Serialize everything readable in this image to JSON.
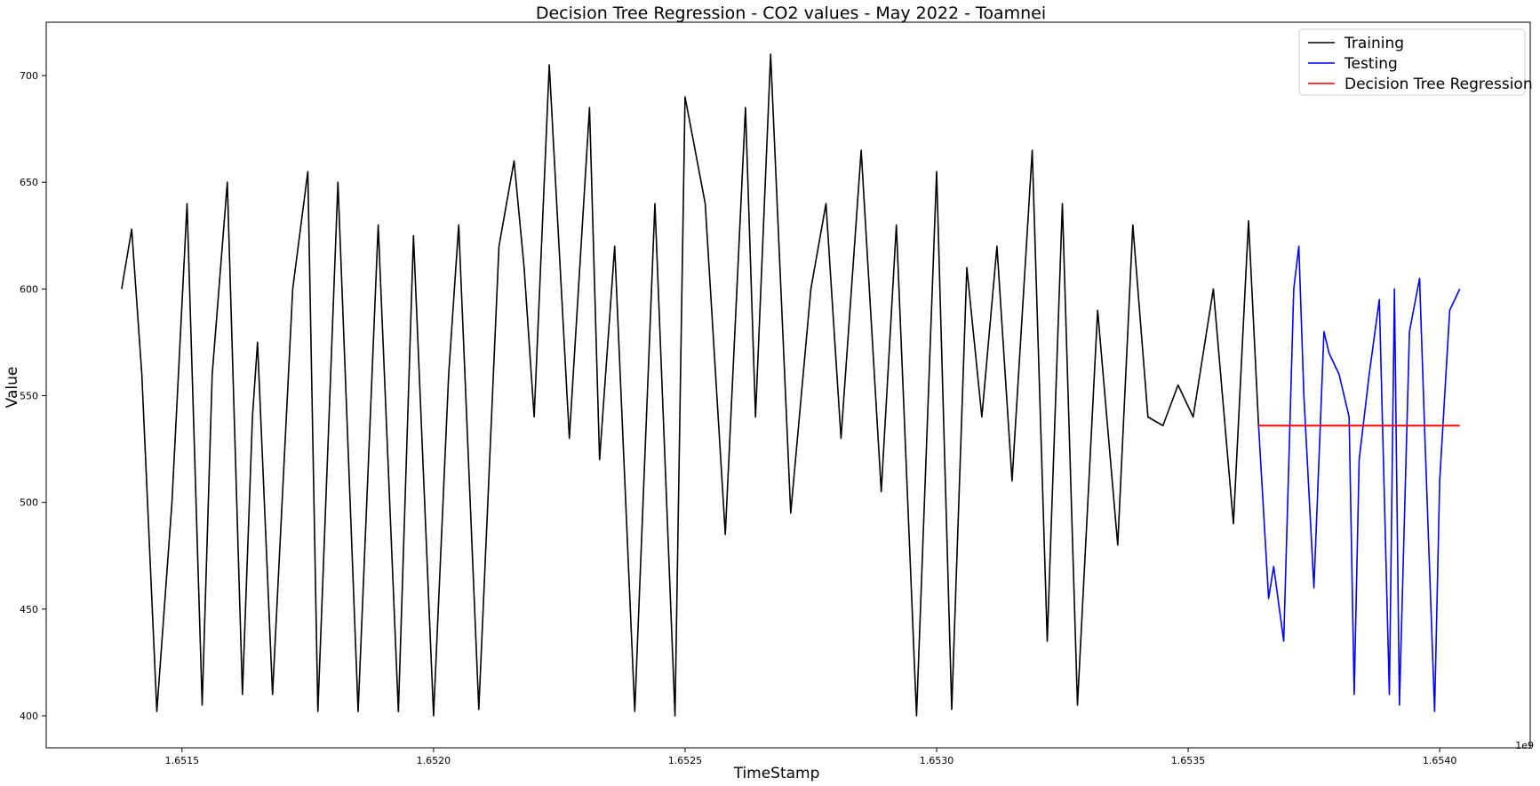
{
  "chart_data": {
    "type": "line",
    "title": "Decision Tree Regression - CO2 values - May 2022 - Toamnei",
    "xlabel": "TimeStamp",
    "ylabel": "Value",
    "x_offset_label": "1e9",
    "xlim": [
      1.65123,
      1.65418
    ],
    "ylim": [
      385,
      725
    ],
    "x_ticks": [
      1.6515,
      1.652,
      1.6525,
      1.653,
      1.6535,
      1.654
    ],
    "x_tick_labels": [
      "1.6515",
      "1.6520",
      "1.6525",
      "1.6530",
      "1.6535",
      "1.6540"
    ],
    "y_ticks": [
      400,
      450,
      500,
      550,
      600,
      650,
      700
    ],
    "y_tick_labels": [
      "400",
      "450",
      "500",
      "550",
      "600",
      "650",
      "700"
    ],
    "grid": false,
    "legend_position": "top-right",
    "series": [
      {
        "name": "Training",
        "color": "#000000",
        "x": [
          1.65138,
          1.6514,
          1.65142,
          1.65145,
          1.65148,
          1.65151,
          1.65154,
          1.65156,
          1.65159,
          1.65162,
          1.65164,
          1.65165,
          1.65168,
          1.65172,
          1.65175,
          1.65177,
          1.65181,
          1.65185,
          1.65189,
          1.65193,
          1.65196,
          1.652,
          1.65203,
          1.65205,
          1.65209,
          1.65213,
          1.65216,
          1.65218,
          1.6522,
          1.65223,
          1.65227,
          1.65231,
          1.65233,
          1.65236,
          1.6524,
          1.65244,
          1.65248,
          1.6525,
          1.65254,
          1.65258,
          1.65262,
          1.65264,
          1.65267,
          1.65271,
          1.65275,
          1.65278,
          1.65281,
          1.65285,
          1.65289,
          1.65292,
          1.65296,
          1.653,
          1.65303,
          1.65306,
          1.65309,
          1.65312,
          1.65315,
          1.65319,
          1.65322,
          1.65325,
          1.65328,
          1.65332,
          1.65336,
          1.65339,
          1.65342,
          1.65345,
          1.65348,
          1.65351,
          1.65355,
          1.65359,
          1.65362,
          1.65364
        ],
        "y": [
          600,
          628,
          560,
          402,
          500,
          640,
          405,
          560,
          650,
          410,
          540,
          575,
          410,
          600,
          655,
          402,
          650,
          402,
          630,
          402,
          625,
          400,
          560,
          630,
          403,
          620,
          660,
          610,
          540,
          705,
          530,
          685,
          520,
          620,
          402,
          640,
          400,
          690,
          640,
          485,
          685,
          540,
          710,
          495,
          600,
          640,
          530,
          665,
          505,
          630,
          400,
          655,
          403,
          610,
          540,
          620,
          510,
          665,
          435,
          640,
          405,
          590,
          480,
          630,
          540,
          536,
          555,
          540,
          600,
          490,
          632,
          536
        ],
        "note_visible_only": true
      },
      {
        "name": "Testing",
        "color": "#0000ff",
        "x": [
          1.65364,
          1.65366,
          1.65367,
          1.65369,
          1.65371,
          1.65372,
          1.65373,
          1.65375,
          1.65377,
          1.65378,
          1.6538,
          1.65382,
          1.65383,
          1.65384,
          1.65386,
          1.65388,
          1.6539,
          1.65391,
          1.65392,
          1.65394,
          1.65396,
          1.65397,
          1.65399,
          1.654,
          1.65402,
          1.65404
        ],
        "y": [
          536,
          455,
          470,
          435,
          600,
          620,
          550,
          460,
          580,
          570,
          560,
          540,
          410,
          520,
          560,
          595,
          410,
          600,
          405,
          580,
          605,
          535,
          402,
          510,
          590,
          600
        ]
      },
      {
        "name": "Decision Tree Regression",
        "color": "#ff0000",
        "x": [
          1.65364,
          1.65404
        ],
        "y": [
          536,
          536
        ]
      }
    ]
  }
}
